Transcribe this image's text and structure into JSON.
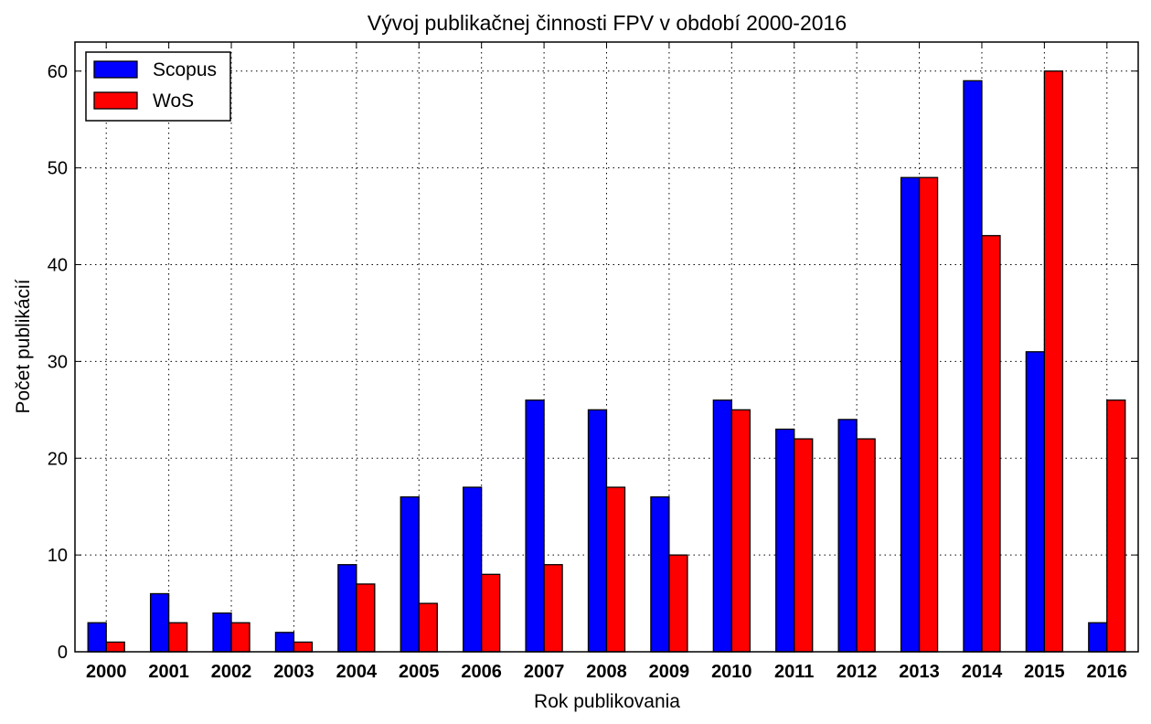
{
  "chart_data": {
    "type": "bar",
    "title": "Vývoj publikačnej činnosti FPV v období 2000-2016",
    "xlabel": "Rok publikovania",
    "ylabel": "Počet publikácií",
    "ylim": [
      0,
      63
    ],
    "yticks": [
      "0",
      "10",
      "20",
      "30",
      "40",
      "50",
      "60"
    ],
    "grid": true,
    "legend_position": "top-left",
    "categories": [
      "2000",
      "2001",
      "2002",
      "2003",
      "2004",
      "2005",
      "2006",
      "2007",
      "2008",
      "2009",
      "2010",
      "2011",
      "2012",
      "2013",
      "2014",
      "2015",
      "2016"
    ],
    "series": [
      {
        "name": "Scopus",
        "color": "#0000ff",
        "values": [
          3,
          6,
          4,
          2,
          9,
          16,
          17,
          26,
          25,
          16,
          26,
          23,
          24,
          49,
          59,
          31,
          3
        ]
      },
      {
        "name": "WoS",
        "color": "#ff0000",
        "values": [
          1,
          3,
          3,
          1,
          7,
          5,
          8,
          9,
          17,
          10,
          25,
          22,
          22,
          49,
          43,
          60,
          26
        ]
      }
    ]
  }
}
